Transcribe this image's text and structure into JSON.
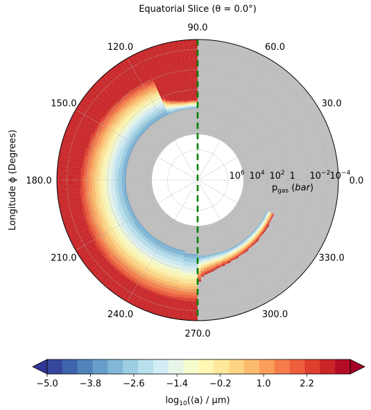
{
  "chart_data": {
    "type": "polar-contour",
    "title": "Equatorial Slice (θ = 0.0°)",
    "angular_axis": {
      "label": "Longitude ϕ (Degrees)",
      "ticks": [
        "0.0",
        "30.0",
        "60.0",
        "90.0",
        "120.0",
        "150.0",
        "180.0",
        "210.0",
        "240.0",
        "270.0",
        "300.0",
        "330.0"
      ],
      "tick_values_deg": [
        0,
        30,
        60,
        90,
        120,
        150,
        180,
        210,
        240,
        270,
        300,
        330
      ]
    },
    "radial_axis": {
      "label": "p_gas (bar)",
      "scale": "log",
      "direction": "decreasing outward",
      "range": [
        1000000000.0,
        1e-05
      ],
      "tick_values": [
        1000000.0,
        10000.0,
        100.0,
        1,
        0.01,
        0.0001
      ],
      "ticks": [
        {
          "base": "10",
          "exp": "6"
        },
        {
          "base": "10",
          "exp": "4"
        },
        {
          "base": "10",
          "exp": "2"
        },
        {
          "base": "1",
          "exp": ""
        },
        {
          "base": "10",
          "exp": "−2"
        },
        {
          "base": "10",
          "exp": "−4"
        }
      ]
    },
    "colorbar": {
      "label": "log10(⟨a⟩ / μm)",
      "label_parts": {
        "prefix": "log",
        "sub": "10",
        "suffix": "(⟨a⟩ / μm)"
      },
      "ticks": [
        "−5.0",
        "−3.8",
        "−2.6",
        "−1.4",
        "−0.2",
        "1.0",
        "2.2"
      ],
      "tick_values": [
        -5.0,
        -3.8,
        -2.6,
        -1.4,
        -0.2,
        1.0,
        2.2
      ],
      "min": -5.0,
      "max": 3.4,
      "levels": 20,
      "colormap": "RdYlBu_r",
      "extend": "both"
    },
    "overlay": {
      "type": "dashed-line",
      "color": "#008000",
      "angles_deg": [
        90,
        270
      ]
    },
    "no_data_color": "#bfbfbf",
    "grid": true
  }
}
